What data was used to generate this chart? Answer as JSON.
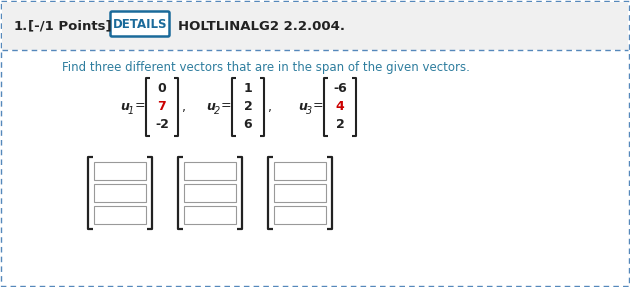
{
  "title_number": "1.",
  "title_points": "[-/1 Points]",
  "details_btn": "DETAILS",
  "problem_code": "HOLTLINALG2 2.2.004.",
  "instruction": "Find three different vectors that are in the span of the given vectors.",
  "u1_sub": "1",
  "u1_values": [
    "0",
    "7",
    "-2"
  ],
  "u1_highlight": [
    false,
    true,
    false
  ],
  "u2_sub": "2",
  "u2_values": [
    "1",
    "2",
    "6"
  ],
  "u2_highlight": [
    false,
    false,
    false
  ],
  "u3_sub": "3",
  "u3_values": [
    "-6",
    "4",
    "2"
  ],
  "u3_highlight": [
    false,
    true,
    false
  ],
  "white_bg": "#ffffff",
  "header_bg": "#f0f0f0",
  "teal_color": "#2e7d9e",
  "red_color": "#cc0000",
  "dark_text": "#222222",
  "border_dotted_color": "#5588bb",
  "details_border": "#1a6a9a",
  "details_text": "#1a6a9a",
  "grid_line_color": "#999999"
}
